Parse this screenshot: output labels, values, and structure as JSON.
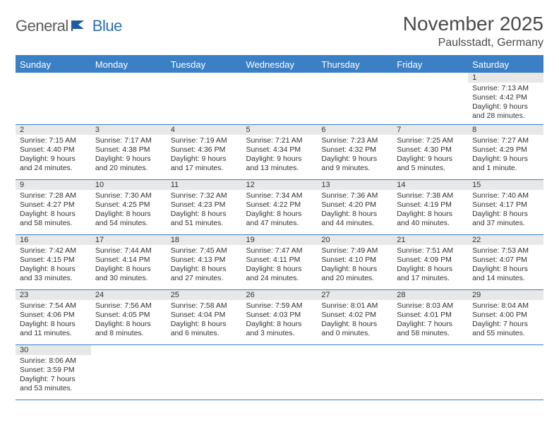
{
  "logo": {
    "part1": "General",
    "part2": "Blue"
  },
  "title": "November 2025",
  "location": "Paulsstadt, Germany",
  "colors": {
    "header_bg": "#3b7fc4",
    "header_text": "#ffffff",
    "daynum_bg": "#e8e8e8",
    "border": "#3b7fc4",
    "logo_gray": "#5a5a5a",
    "logo_blue": "#2a6fb5"
  },
  "columns": [
    "Sunday",
    "Monday",
    "Tuesday",
    "Wednesday",
    "Thursday",
    "Friday",
    "Saturday"
  ],
  "weeks": [
    [
      null,
      null,
      null,
      null,
      null,
      null,
      {
        "n": "1",
        "sr": "Sunrise: 7:13 AM",
        "ss": "Sunset: 4:42 PM",
        "d1": "Daylight: 9 hours",
        "d2": "and 28 minutes."
      }
    ],
    [
      {
        "n": "2",
        "sr": "Sunrise: 7:15 AM",
        "ss": "Sunset: 4:40 PM",
        "d1": "Daylight: 9 hours",
        "d2": "and 24 minutes."
      },
      {
        "n": "3",
        "sr": "Sunrise: 7:17 AM",
        "ss": "Sunset: 4:38 PM",
        "d1": "Daylight: 9 hours",
        "d2": "and 20 minutes."
      },
      {
        "n": "4",
        "sr": "Sunrise: 7:19 AM",
        "ss": "Sunset: 4:36 PM",
        "d1": "Daylight: 9 hours",
        "d2": "and 17 minutes."
      },
      {
        "n": "5",
        "sr": "Sunrise: 7:21 AM",
        "ss": "Sunset: 4:34 PM",
        "d1": "Daylight: 9 hours",
        "d2": "and 13 minutes."
      },
      {
        "n": "6",
        "sr": "Sunrise: 7:23 AM",
        "ss": "Sunset: 4:32 PM",
        "d1": "Daylight: 9 hours",
        "d2": "and 9 minutes."
      },
      {
        "n": "7",
        "sr": "Sunrise: 7:25 AM",
        "ss": "Sunset: 4:30 PM",
        "d1": "Daylight: 9 hours",
        "d2": "and 5 minutes."
      },
      {
        "n": "8",
        "sr": "Sunrise: 7:27 AM",
        "ss": "Sunset: 4:29 PM",
        "d1": "Daylight: 9 hours",
        "d2": "and 1 minute."
      }
    ],
    [
      {
        "n": "9",
        "sr": "Sunrise: 7:28 AM",
        "ss": "Sunset: 4:27 PM",
        "d1": "Daylight: 8 hours",
        "d2": "and 58 minutes."
      },
      {
        "n": "10",
        "sr": "Sunrise: 7:30 AM",
        "ss": "Sunset: 4:25 PM",
        "d1": "Daylight: 8 hours",
        "d2": "and 54 minutes."
      },
      {
        "n": "11",
        "sr": "Sunrise: 7:32 AM",
        "ss": "Sunset: 4:23 PM",
        "d1": "Daylight: 8 hours",
        "d2": "and 51 minutes."
      },
      {
        "n": "12",
        "sr": "Sunrise: 7:34 AM",
        "ss": "Sunset: 4:22 PM",
        "d1": "Daylight: 8 hours",
        "d2": "and 47 minutes."
      },
      {
        "n": "13",
        "sr": "Sunrise: 7:36 AM",
        "ss": "Sunset: 4:20 PM",
        "d1": "Daylight: 8 hours",
        "d2": "and 44 minutes."
      },
      {
        "n": "14",
        "sr": "Sunrise: 7:38 AM",
        "ss": "Sunset: 4:19 PM",
        "d1": "Daylight: 8 hours",
        "d2": "and 40 minutes."
      },
      {
        "n": "15",
        "sr": "Sunrise: 7:40 AM",
        "ss": "Sunset: 4:17 PM",
        "d1": "Daylight: 8 hours",
        "d2": "and 37 minutes."
      }
    ],
    [
      {
        "n": "16",
        "sr": "Sunrise: 7:42 AM",
        "ss": "Sunset: 4:15 PM",
        "d1": "Daylight: 8 hours",
        "d2": "and 33 minutes."
      },
      {
        "n": "17",
        "sr": "Sunrise: 7:44 AM",
        "ss": "Sunset: 4:14 PM",
        "d1": "Daylight: 8 hours",
        "d2": "and 30 minutes."
      },
      {
        "n": "18",
        "sr": "Sunrise: 7:45 AM",
        "ss": "Sunset: 4:13 PM",
        "d1": "Daylight: 8 hours",
        "d2": "and 27 minutes."
      },
      {
        "n": "19",
        "sr": "Sunrise: 7:47 AM",
        "ss": "Sunset: 4:11 PM",
        "d1": "Daylight: 8 hours",
        "d2": "and 24 minutes."
      },
      {
        "n": "20",
        "sr": "Sunrise: 7:49 AM",
        "ss": "Sunset: 4:10 PM",
        "d1": "Daylight: 8 hours",
        "d2": "and 20 minutes."
      },
      {
        "n": "21",
        "sr": "Sunrise: 7:51 AM",
        "ss": "Sunset: 4:09 PM",
        "d1": "Daylight: 8 hours",
        "d2": "and 17 minutes."
      },
      {
        "n": "22",
        "sr": "Sunrise: 7:53 AM",
        "ss": "Sunset: 4:07 PM",
        "d1": "Daylight: 8 hours",
        "d2": "and 14 minutes."
      }
    ],
    [
      {
        "n": "23",
        "sr": "Sunrise: 7:54 AM",
        "ss": "Sunset: 4:06 PM",
        "d1": "Daylight: 8 hours",
        "d2": "and 11 minutes."
      },
      {
        "n": "24",
        "sr": "Sunrise: 7:56 AM",
        "ss": "Sunset: 4:05 PM",
        "d1": "Daylight: 8 hours",
        "d2": "and 8 minutes."
      },
      {
        "n": "25",
        "sr": "Sunrise: 7:58 AM",
        "ss": "Sunset: 4:04 PM",
        "d1": "Daylight: 8 hours",
        "d2": "and 6 minutes."
      },
      {
        "n": "26",
        "sr": "Sunrise: 7:59 AM",
        "ss": "Sunset: 4:03 PM",
        "d1": "Daylight: 8 hours",
        "d2": "and 3 minutes."
      },
      {
        "n": "27",
        "sr": "Sunrise: 8:01 AM",
        "ss": "Sunset: 4:02 PM",
        "d1": "Daylight: 8 hours",
        "d2": "and 0 minutes."
      },
      {
        "n": "28",
        "sr": "Sunrise: 8:03 AM",
        "ss": "Sunset: 4:01 PM",
        "d1": "Daylight: 7 hours",
        "d2": "and 58 minutes."
      },
      {
        "n": "29",
        "sr": "Sunrise: 8:04 AM",
        "ss": "Sunset: 4:00 PM",
        "d1": "Daylight: 7 hours",
        "d2": "and 55 minutes."
      }
    ],
    [
      {
        "n": "30",
        "sr": "Sunrise: 8:06 AM",
        "ss": "Sunset: 3:59 PM",
        "d1": "Daylight: 7 hours",
        "d2": "and 53 minutes."
      },
      null,
      null,
      null,
      null,
      null,
      null
    ]
  ]
}
